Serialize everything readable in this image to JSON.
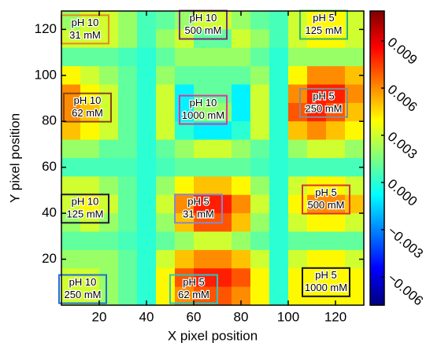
{
  "chart_data": {
    "type": "heatmap",
    "xlabel": "X pixel position",
    "ylabel": "Y pixel position",
    "colormap": "jet",
    "xlim": [
      4,
      132
    ],
    "ylim": [
      0,
      128
    ],
    "xticks": [
      20,
      40,
      60,
      80,
      100,
      120
    ],
    "yticks": [
      20,
      40,
      60,
      80,
      100,
      120
    ],
    "clim": [
      -0.0078,
      0.0109
    ],
    "cticks": [
      {
        "value": -0.006,
        "label": "−0.006"
      },
      {
        "value": -0.003,
        "label": "−0.003"
      },
      {
        "value": 0,
        "label": "0.000"
      },
      0.003,
      0.006,
      0.009
    ],
    "x": [
      8,
      16,
      24,
      32,
      40,
      48,
      56,
      64,
      72,
      80,
      88,
      96,
      104,
      112,
      120,
      128
    ],
    "y": [
      124,
      116,
      108,
      100,
      92,
      84,
      76,
      68,
      60,
      52,
      44,
      36,
      28,
      20,
      12,
      4
    ],
    "z": [
      [
        0.002,
        0.003,
        0.003,
        0.002,
        0.0005,
        0.001,
        0.002,
        0.003,
        0.003,
        0.002,
        0.001,
        0.0005,
        0.003,
        0.004,
        0.004,
        0.003
      ],
      [
        0.003,
        0.003,
        0.003,
        0.002,
        0.0005,
        0.002,
        0.003,
        0.001,
        0.001,
        0.003,
        0.002,
        0.0005,
        0.003,
        0.004,
        0.004,
        0.003
      ],
      [
        0.001,
        0.001,
        0.001,
        0.0005,
        0,
        0.001,
        0.002,
        0.002,
        0.002,
        0.002,
        0.001,
        0,
        0.002,
        0.002,
        0.002,
        0.002
      ],
      [
        0.004,
        0.003,
        0.002,
        0.001,
        0,
        0.002,
        0.001,
        0.001,
        0.001,
        0.001,
        0.002,
        0,
        0.004,
        0.006,
        0.006,
        0.005
      ],
      [
        0.006,
        0.004,
        0.003,
        0.001,
        0,
        0.003,
        -0.001,
        0.001,
        0.001,
        -0.001,
        0.003,
        0,
        0.006,
        0.008,
        0.008,
        0.006
      ],
      [
        0.006,
        0.005,
        0.003,
        0.001,
        0,
        0.003,
        -0.001,
        0.002,
        0.002,
        -0.001,
        0.003,
        0,
        0.007,
        0.008,
        0.007,
        0.005
      ],
      [
        0.005,
        0.004,
        0.003,
        0.001,
        0,
        0.003,
        0,
        -0.001,
        -0.001,
        0,
        0.003,
        0,
        0.005,
        0.006,
        0.005,
        0.004
      ],
      [
        0.002,
        0.002,
        0.001,
        0.001,
        0,
        0.001,
        0.002,
        0.003,
        0.003,
        0.002,
        0.001,
        0,
        0.002,
        0.003,
        0.003,
        0.002
      ],
      [
        0.0005,
        0.0005,
        0.0005,
        0.0005,
        0,
        0.0005,
        0.001,
        0.001,
        0.001,
        0.001,
        0.0005,
        0,
        0.0005,
        0.0005,
        0.0005,
        0.0005
      ],
      [
        0.003,
        0.003,
        0.002,
        0.001,
        0,
        0.002,
        0.004,
        0.005,
        0.005,
        0.004,
        0.002,
        0,
        0.003,
        0.004,
        0.004,
        0.003
      ],
      [
        0.003,
        0.004,
        0.003,
        0.001,
        0,
        0.003,
        0.006,
        0.008,
        0.008,
        0.006,
        0.003,
        0,
        0.004,
        0.006,
        0.006,
        0.005
      ],
      [
        0.002,
        0.003,
        0.002,
        0.001,
        0,
        0.002,
        0.005,
        0.007,
        0.007,
        0.005,
        0.002,
        0,
        0.003,
        0.004,
        0.004,
        0.003
      ],
      [
        0.001,
        0.001,
        0.001,
        0.0005,
        0,
        0.001,
        0.002,
        0.003,
        0.003,
        0.002,
        0.001,
        0,
        0.001,
        0.001,
        0.001,
        0.001
      ],
      [
        0.002,
        0.002,
        0.002,
        0.001,
        0,
        0.003,
        0.005,
        0.006,
        0.006,
        0.005,
        0.003,
        0,
        0.003,
        0.004,
        0.004,
        0.003
      ],
      [
        0.003,
        0.003,
        0.002,
        0.001,
        0,
        0.004,
        0.007,
        0.008,
        0.008,
        0.007,
        0.004,
        0,
        0.004,
        0.004,
        0.004,
        0.004
      ],
      [
        0.003,
        0.003,
        0.002,
        0.001,
        0,
        0.004,
        0.006,
        0.007,
        0.007,
        0.006,
        0.004,
        0,
        0.004,
        0.004,
        0.004,
        0.004
      ]
    ],
    "annotations": [
      {
        "lines": [
          "pH 10",
          "31 mM"
        ],
        "x": 14,
        "y": 120,
        "color": "#e8891c"
      },
      {
        "lines": [
          "pH 10",
          "500 mM"
        ],
        "x": 64,
        "y": 122,
        "color": "#7b2a7b"
      },
      {
        "lines": [
          "pH 5",
          "125 mM"
        ],
        "x": 115,
        "y": 122,
        "color": "#2bb673"
      },
      {
        "lines": [
          "pH 10",
          "62 mM"
        ],
        "x": 15,
        "y": 86,
        "color": "#8b4513"
      },
      {
        "lines": [
          "pH 10",
          "1000 mM"
        ],
        "x": 64,
        "y": 85,
        "color": "#e0379b"
      },
      {
        "lines": [
          "pH 5",
          "250 mM"
        ],
        "x": 115,
        "y": 88,
        "color": "#8c8c8c"
      },
      {
        "lines": [
          "pH 10",
          "125 mM"
        ],
        "x": 14,
        "y": 42,
        "color": "#1a1a3a"
      },
      {
        "lines": [
          "pH 5",
          "31 mM"
        ],
        "x": 62,
        "y": 42,
        "color": "#8888cc"
      },
      {
        "lines": [
          "pH 5",
          "500 mM"
        ],
        "x": 116,
        "y": 46,
        "color": "#e0302a"
      },
      {
        "lines": [
          "pH 10",
          "250 mM"
        ],
        "x": 13,
        "y": 7,
        "color": "#1e6fd0"
      },
      {
        "lines": [
          "pH 5",
          "62 mM"
        ],
        "x": 60,
        "y": 7,
        "color": "#2ac4c4"
      },
      {
        "lines": [
          "pH 5",
          "1000 mM"
        ],
        "x": 116,
        "y": 10,
        "color": "#111111"
      }
    ]
  }
}
